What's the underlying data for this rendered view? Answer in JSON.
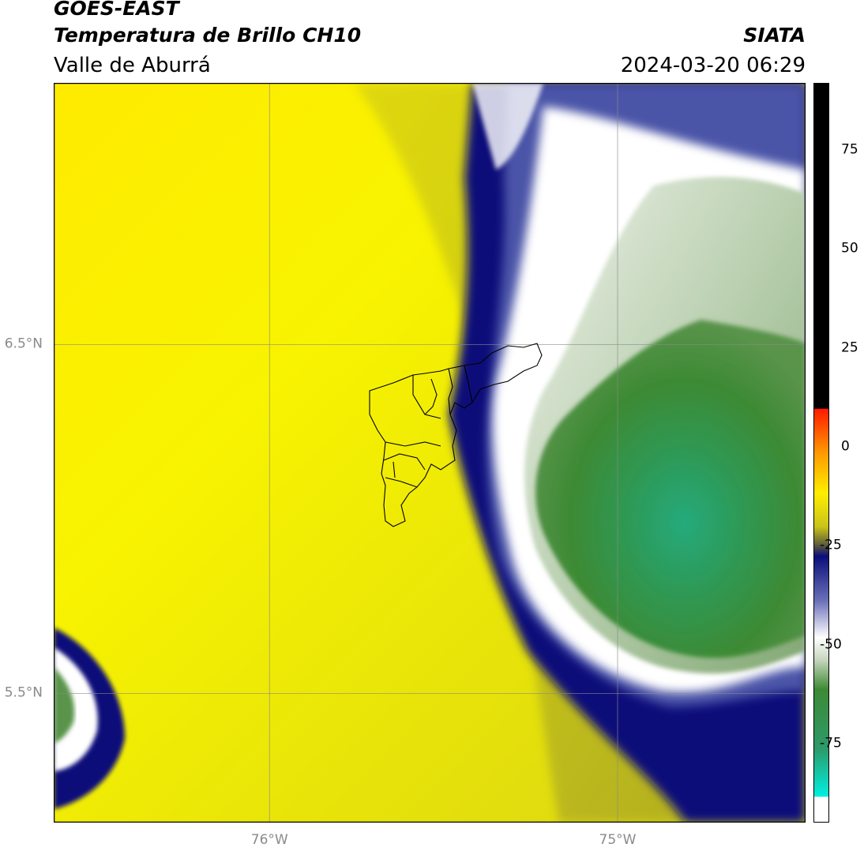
{
  "header": {
    "satellite": "GOES-EAST",
    "product": "Temperatura de Brillo CH10",
    "region": "Valle de Aburrá",
    "agency": "SIATA",
    "datetime": "2024-03-20 06:29"
  },
  "map": {
    "lat_labels": [
      {
        "value": 6.5,
        "text": "6.5°N"
      },
      {
        "value": 5.5,
        "text": "5.5°N"
      }
    ],
    "lon_labels": [
      {
        "value": -76,
        "text": "76°W"
      },
      {
        "value": -75,
        "text": "75°W"
      }
    ],
    "extent": {
      "lon_min": -76.62,
      "lon_max": -74.46,
      "lat_min": 5.13,
      "lat_max": 7.25
    },
    "colors": {
      "warm_yellow": "#f5ef00",
      "olive": "#9c9a2a",
      "navy": "#0a0f7a",
      "white": "#ffffff",
      "green": "#3e8a32",
      "teal": "#27aa7a"
    }
  },
  "colorbar": {
    "ticks": [
      {
        "value": 75,
        "text": "75"
      },
      {
        "value": 50,
        "text": "50"
      },
      {
        "value": 25,
        "text": "25"
      },
      {
        "value": 0,
        "text": "0"
      },
      {
        "value": -25,
        "text": "-25"
      },
      {
        "value": -50,
        "text": "-50"
      },
      {
        "value": -75,
        "text": "-75"
      }
    ],
    "range": [
      -95,
      92
    ]
  }
}
